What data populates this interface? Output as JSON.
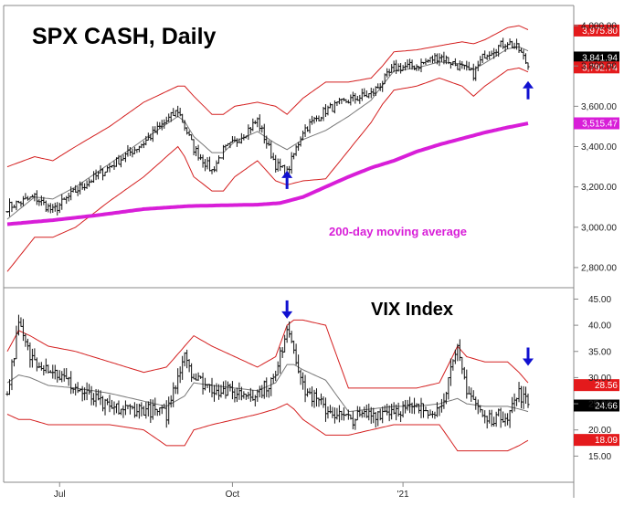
{
  "chart_data": [
    {
      "type": "ohlc",
      "title": "SPX CASH, Daily",
      "ylim": [
        2700,
        4100
      ],
      "y_ticks": [
        "4,000.00",
        "3,800.00",
        "3,600.00",
        "3,400.00",
        "3,200.00",
        "3,000.00",
        "2,800.00"
      ],
      "x_ticks": [
        "Jul",
        "Oct",
        "'21"
      ],
      "annotation": "200-day moving average",
      "series": [
        {
          "name": "200-day moving average",
          "color": "#d81ed8",
          "x": [
            0,
            20,
            40,
            60,
            80,
            100,
            110,
            120,
            130,
            140,
            150,
            160,
            170,
            180,
            190,
            200,
            210,
            220,
            229
          ],
          "values": [
            3015,
            3035,
            3060,
            3090,
            3105,
            3110,
            3112,
            3120,
            3150,
            3200,
            3250,
            3295,
            3330,
            3375,
            3410,
            3440,
            3470,
            3495,
            3515
          ]
        }
      ],
      "price_path": {
        "x": [
          0,
          12,
          20,
          30,
          45,
          60,
          75,
          78,
          82,
          90,
          95,
          100,
          110,
          118,
          123,
          130,
          140,
          150,
          160,
          165,
          170,
          180,
          190,
          200,
          205,
          210,
          220,
          225,
          229
        ],
        "values": [
          3100,
          3150,
          3080,
          3180,
          3300,
          3420,
          3580,
          3500,
          3390,
          3280,
          3380,
          3420,
          3530,
          3310,
          3270,
          3480,
          3580,
          3630,
          3660,
          3720,
          3790,
          3800,
          3850,
          3790,
          3760,
          3860,
          3920,
          3880,
          3800
        ]
      },
      "bollinger": {
        "upper": [
          3300,
          3350,
          3330,
          3400,
          3500,
          3620,
          3700,
          3700,
          3650,
          3560,
          3560,
          3600,
          3620,
          3600,
          3560,
          3640,
          3720,
          3720,
          3740,
          3800,
          3870,
          3880,
          3900,
          3920,
          3910,
          3930,
          3990,
          4000,
          3980
        ],
        "lower": [
          2780,
          2950,
          2950,
          3000,
          3130,
          3250,
          3400,
          3350,
          3250,
          3180,
          3180,
          3250,
          3330,
          3230,
          3210,
          3230,
          3240,
          3380,
          3520,
          3610,
          3680,
          3700,
          3740,
          3700,
          3650,
          3700,
          3780,
          3790,
          3770
        ]
      },
      "price_labels": [
        {
          "value": 3975.8,
          "label": "3,975.80",
          "color": "#e41a1c"
        },
        {
          "value": 3841.94,
          "label": "3,841.94",
          "color": "#000000"
        },
        {
          "value": 3792.74,
          "label": "3,792.74",
          "color": "#e41a1c"
        },
        {
          "value": 3515.47,
          "label": "3,515.47",
          "color": "#d81ed8"
        }
      ],
      "arrows": [
        {
          "x": 123,
          "value": 3235,
          "direction": "up"
        },
        {
          "x": 229,
          "value": 3680,
          "direction": "up"
        }
      ]
    },
    {
      "type": "ohlc",
      "title": "VIX Index",
      "ylim": [
        10,
        47
      ],
      "y_ticks": [
        "45.00",
        "40.00",
        "35.00",
        "30.00",
        "25.00",
        "20.00",
        "15.00"
      ],
      "price_path": {
        "x": [
          0,
          5,
          10,
          18,
          30,
          45,
          60,
          70,
          78,
          82,
          90,
          100,
          110,
          118,
          123,
          126,
          130,
          140,
          150,
          160,
          170,
          180,
          190,
          198,
          202,
          210,
          220,
          225,
          229
        ],
        "values": [
          27,
          40,
          34,
          32,
          28,
          24,
          24,
          23,
          35,
          30,
          28,
          27,
          27,
          30,
          40,
          36,
          28,
          24,
          22,
          23,
          24,
          24,
          24,
          35,
          28,
          22,
          23,
          27,
          25
        ],
        "last": 24.66
      },
      "bollinger": {
        "upper": [
          35,
          39,
          38,
          36,
          35,
          33,
          31,
          32,
          36,
          38,
          36,
          34,
          32,
          34,
          40,
          41,
          41,
          40,
          28,
          28,
          28,
          28,
          29,
          36,
          34,
          33,
          33,
          31,
          29
        ],
        "lower": [
          23,
          22,
          22,
          21,
          21,
          21,
          20,
          17,
          17,
          20,
          21,
          22,
          23,
          24,
          25,
          24,
          22,
          19,
          19,
          20,
          21,
          21,
          21,
          16,
          16,
          16,
          16,
          17,
          18
        ]
      },
      "price_labels": [
        {
          "value": 28.56,
          "label": "28.56",
          "color": "#e41a1c"
        },
        {
          "value": 24.66,
          "label": "24.66",
          "color": "#000000"
        },
        {
          "value": 18.09,
          "label": "18.09",
          "color": "#e41a1c"
        }
      ],
      "arrows": [
        {
          "x": 123,
          "value": 43,
          "direction": "down"
        },
        {
          "x": 229,
          "value": 34,
          "direction": "down"
        }
      ]
    }
  ]
}
